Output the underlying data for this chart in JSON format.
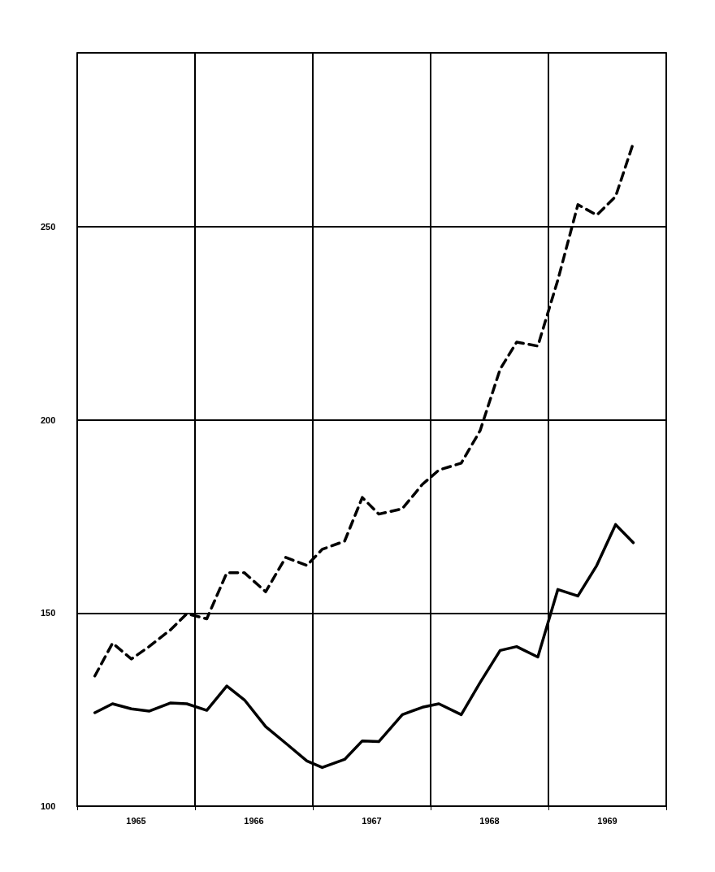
{
  "chart_data": {
    "type": "line",
    "x": [
      1965.15,
      1965.3,
      1965.46,
      1965.61,
      1965.79,
      1965.93,
      1966.1,
      1966.27,
      1966.42,
      1966.6,
      1966.77,
      1966.95,
      1967.08,
      1967.27,
      1967.42,
      1967.56,
      1967.76,
      1967.93,
      1968.07,
      1968.26,
      1968.42,
      1968.59,
      1968.73,
      1968.91,
      1969.08,
      1969.25,
      1969.41,
      1969.57,
      1969.72
    ],
    "series": [
      {
        "color": "#000000",
        "line_style": "dashed",
        "values": [
          133.7,
          142.2,
          138.1,
          141.3,
          145.6,
          149.8,
          148.5,
          160.4,
          160.4,
          155.5,
          164.4,
          162.3,
          166.5,
          168.6,
          179.9,
          175.6,
          177,
          183.3,
          187,
          188.8,
          197.2,
          213.1,
          220.1,
          219.1,
          236.2,
          255.7,
          253,
          257.8,
          271.6
        ]
      },
      {
        "color": "#000000",
        "line_style": "solid",
        "values": [
          124.2,
          126.5,
          125.2,
          124.6,
          126.7,
          126.5,
          124.8,
          131.1,
          127.5,
          120.6,
          116.3,
          111.7,
          110,
          112.1,
          116.9,
          116.7,
          123.7,
          125.6,
          126.5,
          123.7,
          132,
          140.3,
          141.3,
          138.6,
          156.1,
          154.4,
          162.3,
          172.9,
          168.2
        ]
      }
    ],
    "xlim": [
      1965,
      1970
    ],
    "xticks": [
      {
        "value": 1965,
        "label": null
      },
      {
        "value": 1965.5,
        "label": "1965"
      },
      {
        "value": 1966,
        "label": null
      },
      {
        "value": 1966.5,
        "label": "1966"
      },
      {
        "value": 1967,
        "label": null
      },
      {
        "value": 1967.5,
        "label": "1967"
      },
      {
        "value": 1968,
        "label": null
      },
      {
        "value": 1968.5,
        "label": "1968"
      },
      {
        "value": 1969,
        "label": null
      },
      {
        "value": 1969.5,
        "label": "1969"
      },
      {
        "value": 1970,
        "label": null
      }
    ],
    "ylim": [
      100,
      295
    ],
    "yticks": [
      100,
      150,
      200,
      250
    ],
    "grid": true,
    "marker": "none"
  }
}
